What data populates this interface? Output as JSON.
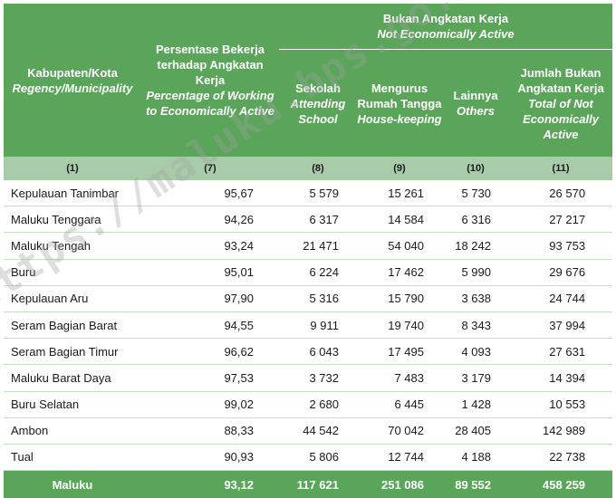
{
  "header": {
    "region_label": "Kabupaten/Kota",
    "region_label_en": "Regency/Municipality",
    "pct_label": "Persentase Bekerja terhadap Angkatan Kerja",
    "pct_label_en": "Percentage of Working to Economically Active",
    "group_label": "Bukan Angkatan Kerja",
    "group_label_en": "Not Economically Active",
    "school_label": "Sekolah",
    "school_label_en": "Attending School",
    "house_label": "Mengurus Rumah Tangga",
    "house_label_en": "House-keeping",
    "others_label": "Lainnya",
    "others_label_en": "Others",
    "total_label": "Jumlah Bukan Angkatan Kerja",
    "total_label_en": "Total of Not Economically Active"
  },
  "col_index": [
    "(1)",
    "(7)",
    "(8)",
    "(9)",
    "(10)",
    "(11)"
  ],
  "rows": [
    {
      "name": "Kepulauan Tanimbar",
      "pct": "95,67",
      "school": "5 579",
      "house": "15 261",
      "others": "5 730",
      "total": "26 570"
    },
    {
      "name": "Maluku Tenggara",
      "pct": "94,26",
      "school": "6 317",
      "house": "14 584",
      "others": "6 316",
      "total": "27 217"
    },
    {
      "name": "Maluku Tengah",
      "pct": "93,24",
      "school": "21 471",
      "house": "54 040",
      "others": "18 242",
      "total": "93 753"
    },
    {
      "name": "Buru",
      "pct": "95,01",
      "school": "6 224",
      "house": "17 462",
      "others": "5 990",
      "total": "29 676"
    },
    {
      "name": "Kepulauan Aru",
      "pct": "97,90",
      "school": "5 316",
      "house": "15 790",
      "others": "3 638",
      "total": "24 744"
    },
    {
      "name": "Seram Bagian Barat",
      "pct": "94,55",
      "school": "9 911",
      "house": "19 740",
      "others": "8 343",
      "total": "37 994"
    },
    {
      "name": "Seram Bagian Timur",
      "pct": "96,62",
      "school": "6 043",
      "house": "17 495",
      "others": "4 093",
      "total": "27 631"
    },
    {
      "name": "Maluku Barat Daya",
      "pct": "97,53",
      "school": "3 732",
      "house": "7 483",
      "others": "3 179",
      "total": "14 394"
    },
    {
      "name": "Buru Selatan",
      "pct": "99,02",
      "school": "2 680",
      "house": "6 445",
      "others": "1 428",
      "total": "10 553"
    },
    {
      "name": "Ambon",
      "pct": "88,33",
      "school": "44 542",
      "house": "70 042",
      "others": "28 405",
      "total": "142 989"
    },
    {
      "name": "Tual",
      "pct": "90,93",
      "school": "5 806",
      "house": "12 744",
      "others": "4 188",
      "total": "22 738"
    }
  ],
  "total_row": {
    "name": "Maluku",
    "pct": "93,12",
    "school": "117 621",
    "house": "251 086",
    "others": "89 552",
    "total": "458 259"
  },
  "watermark": "https://maluku.bps.go.id",
  "colors": {
    "header_green": "#5aa55a",
    "index_green": "#a8ccaa"
  }
}
